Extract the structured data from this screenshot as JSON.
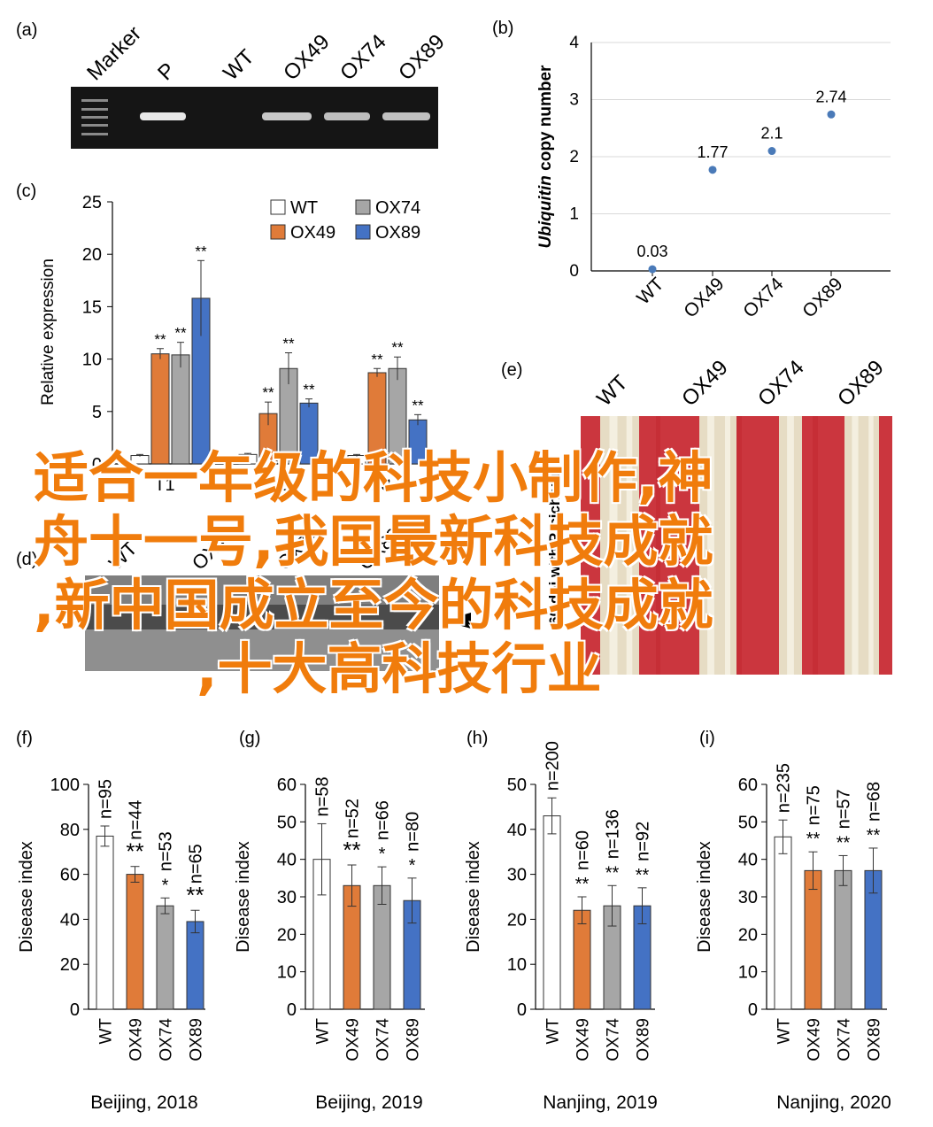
{
  "panels": {
    "a": {
      "label": "(a)",
      "lanes": [
        "Marker",
        "P",
        "WT",
        "OX49",
        "OX74",
        "OX89"
      ]
    },
    "b": {
      "label": "(b)",
      "ylabel_italic": "Ubiquitin",
      "ylabel_rest": " copy number"
    },
    "c": {
      "label": "(c)",
      "ylabel": "Relative expression",
      "xlabels": [
        "T1",
        "2",
        "F3"
      ]
    },
    "d": {
      "label": "(d)",
      "lanes": [
        "WT",
        "OX49",
        "OX74",
        "OX89"
      ]
    },
    "e": {
      "label": "(e)",
      "lanes": [
        "WT",
        "OX49",
        "OX74",
        "OX89"
      ],
      "side_label": "60 dpi with P. cichorii"
    },
    "f": {
      "label": "(f)",
      "location": "Beijing, 2018"
    },
    "g": {
      "label": "(g)",
      "location": "Beijing, 2019"
    },
    "h": {
      "label": "(h)",
      "location": "Nanjing, 2019"
    },
    "i": {
      "label": "(i)",
      "location": "Nanjing, 2020"
    }
  },
  "colors": {
    "WT": "#ffffff",
    "OX49": "#e07b39",
    "OX74": "#a6a6a6",
    "OX89": "#4472c4",
    "scatter": "#4a7ab8",
    "overlay_text": "#f07c0c"
  },
  "overlay": {
    "lines": [
      "适合一年级的科技小制作,神",
      "舟十一号,我国最新科技成就",
      ",新中国成立至今的科技成就",
      ",十大高科技行业"
    ]
  },
  "chart_data": [
    {
      "id": "b",
      "type": "scatter",
      "x": [
        "WT",
        "OX49",
        "OX74",
        "OX89"
      ],
      "values": [
        0.03,
        1.77,
        2.1,
        2.74
      ],
      "data_labels": [
        "0.03",
        "1.77",
        "2.1",
        "2.74"
      ],
      "ylim": [
        0,
        4
      ],
      "yticks": [
        "0",
        "1",
        "2",
        "3",
        "4"
      ],
      "grid": true
    },
    {
      "id": "c",
      "type": "bar",
      "categories": [
        "T1",
        "2",
        "F3"
      ],
      "ylim": [
        0,
        25
      ],
      "yticks": [
        "0",
        "5",
        "10",
        "15",
        "20",
        "25"
      ],
      "series": [
        {
          "name": "WT",
          "values": [
            0.8,
            0.9,
            0.8
          ],
          "err": [
            0.1,
            0.1,
            0.1
          ],
          "sig": [
            "",
            "",
            ""
          ]
        },
        {
          "name": "OX49",
          "values": [
            10.5,
            4.8,
            8.7
          ],
          "err": [
            0.5,
            1.1,
            0.4
          ],
          "sig": [
            "**",
            "**",
            "**"
          ]
        },
        {
          "name": "OX74",
          "values": [
            10.4,
            9.1,
            9.1
          ],
          "err": [
            1.2,
            1.5,
            1.1
          ],
          "sig": [
            "**",
            "**",
            "**"
          ]
        },
        {
          "name": "OX89",
          "values": [
            15.8,
            5.8,
            4.2
          ],
          "err": [
            3.6,
            0.4,
            0.5
          ],
          "sig": [
            "**",
            "**",
            "**"
          ]
        }
      ],
      "legend": [
        "WT",
        "OX74",
        "OX49",
        "OX89"
      ],
      "legend_position": "top-right"
    },
    {
      "id": "f",
      "type": "bar",
      "categories": [
        "WT",
        "OX49",
        "OX74",
        "OX89"
      ],
      "values": [
        77,
        60,
        46,
        39
      ],
      "err": [
        4.5,
        3.5,
        3.5,
        5
      ],
      "n": [
        "n=95",
        "n=44",
        "n=53",
        "n=65"
      ],
      "sig": [
        "",
        "**",
        "*",
        "**"
      ],
      "ylim": [
        0,
        100
      ],
      "yticks": [
        "0",
        "20",
        "40",
        "60",
        "80",
        "100"
      ],
      "ylabel": "Disease index",
      "xlabel": "Beijing, 2018"
    },
    {
      "id": "g",
      "type": "bar",
      "categories": [
        "WT",
        "OX49",
        "OX74",
        "OX89"
      ],
      "values": [
        40,
        33,
        33,
        29
      ],
      "err": [
        9.5,
        5.5,
        5,
        6
      ],
      "n": [
        "n=58",
        "n=52",
        "n=66",
        "n=80"
      ],
      "sig": [
        "",
        "**",
        "*",
        "*"
      ],
      "ylim": [
        0,
        60
      ],
      "yticks": [
        "0",
        "10",
        "20",
        "30",
        "40",
        "50",
        "60"
      ],
      "ylabel": "Disease index",
      "xlabel": "Beijing, 2019"
    },
    {
      "id": "h",
      "type": "bar",
      "categories": [
        "WT",
        "OX49",
        "OX74",
        "OX89"
      ],
      "values": [
        43,
        22,
        23,
        23
      ],
      "err": [
        4,
        3,
        4.5,
        4
      ],
      "n": [
        "n=200",
        "n=60",
        "n=136",
        "n=92"
      ],
      "sig": [
        "",
        "**",
        "**",
        "**"
      ],
      "ylim": [
        0,
        50
      ],
      "yticks": [
        "0",
        "10",
        "20",
        "30",
        "40",
        "50"
      ],
      "ylabel": "Disease index",
      "xlabel": "Nanjing, 2019"
    },
    {
      "id": "i",
      "type": "bar",
      "categories": [
        "WT",
        "OX49",
        "OX74",
        "OX89"
      ],
      "values": [
        46,
        37,
        37,
        37
      ],
      "err": [
        4.5,
        5,
        4,
        6
      ],
      "n": [
        "n=235",
        "n=75",
        "n=57",
        "n=68"
      ],
      "sig": [
        "",
        "**",
        "**",
        "**"
      ],
      "ylim": [
        0,
        60
      ],
      "yticks": [
        "0",
        "10",
        "20",
        "30",
        "40",
        "50",
        "60"
      ],
      "ylabel": "Disease index",
      "xlabel": "Nanjing, 2020"
    }
  ]
}
